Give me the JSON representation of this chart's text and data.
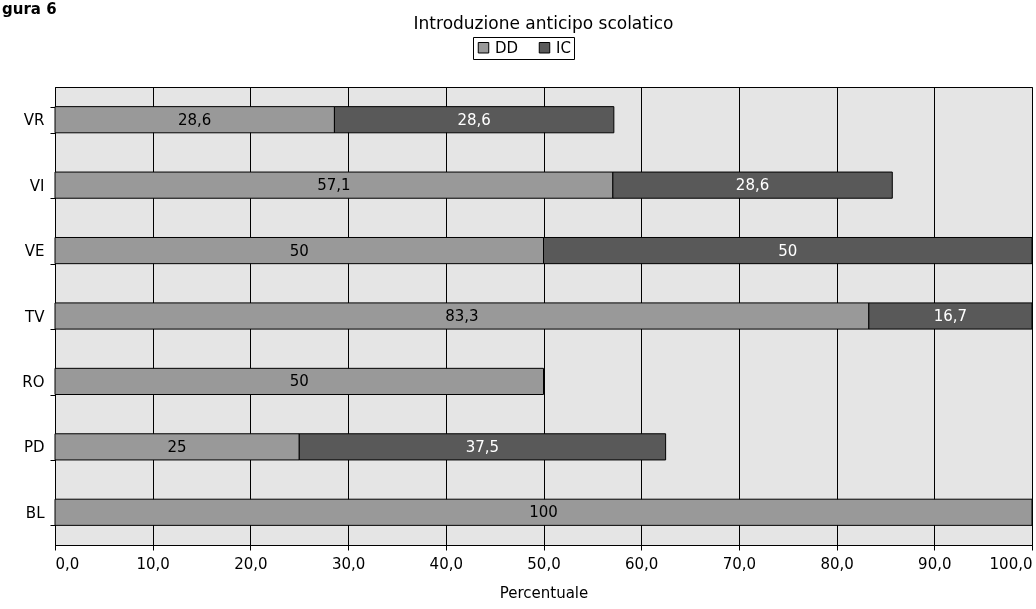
{
  "chart_data": {
    "type": "bar",
    "orientation": "horizontal",
    "stacked": true,
    "title": "Introduzione anticipo scolatico",
    "xlabel": "Percentuale",
    "annotations": [
      "gura 6"
    ],
    "categories": [
      "VR",
      "VI",
      "VE",
      "TV",
      "RO",
      "PD",
      "BL"
    ],
    "series": [
      {
        "name": "DD",
        "color": "#999999",
        "values": [
          28.6,
          57.1,
          50,
          83.3,
          50,
          25,
          100
        ],
        "value_labels": [
          "28,6",
          "57,1",
          "50",
          "83,3",
          "50",
          "25",
          "100"
        ]
      },
      {
        "name": "IC",
        "color": "#595959",
        "values": [
          28.6,
          28.6,
          50,
          16.7,
          null,
          37.5,
          null
        ],
        "value_labels": [
          "28,6",
          "28,6",
          "50",
          "16,7",
          null,
          "37,5",
          null
        ]
      }
    ],
    "xlim": [
      0,
      100
    ],
    "xticks": [
      {
        "value": 0,
        "label": "0,0"
      },
      {
        "value": 10,
        "label": "10,0"
      },
      {
        "value": 20,
        "label": "20,0"
      },
      {
        "value": 30,
        "label": "30,0"
      },
      {
        "value": 40,
        "label": "40,0"
      },
      {
        "value": 50,
        "label": "50,0"
      },
      {
        "value": 60,
        "label": "60,0"
      },
      {
        "value": 70,
        "label": "70,0"
      },
      {
        "value": 80,
        "label": "80,0"
      },
      {
        "value": 90,
        "label": "90,0"
      },
      {
        "value": 100,
        "label": "100,0"
      }
    ],
    "grid": "x",
    "legend": "top"
  }
}
